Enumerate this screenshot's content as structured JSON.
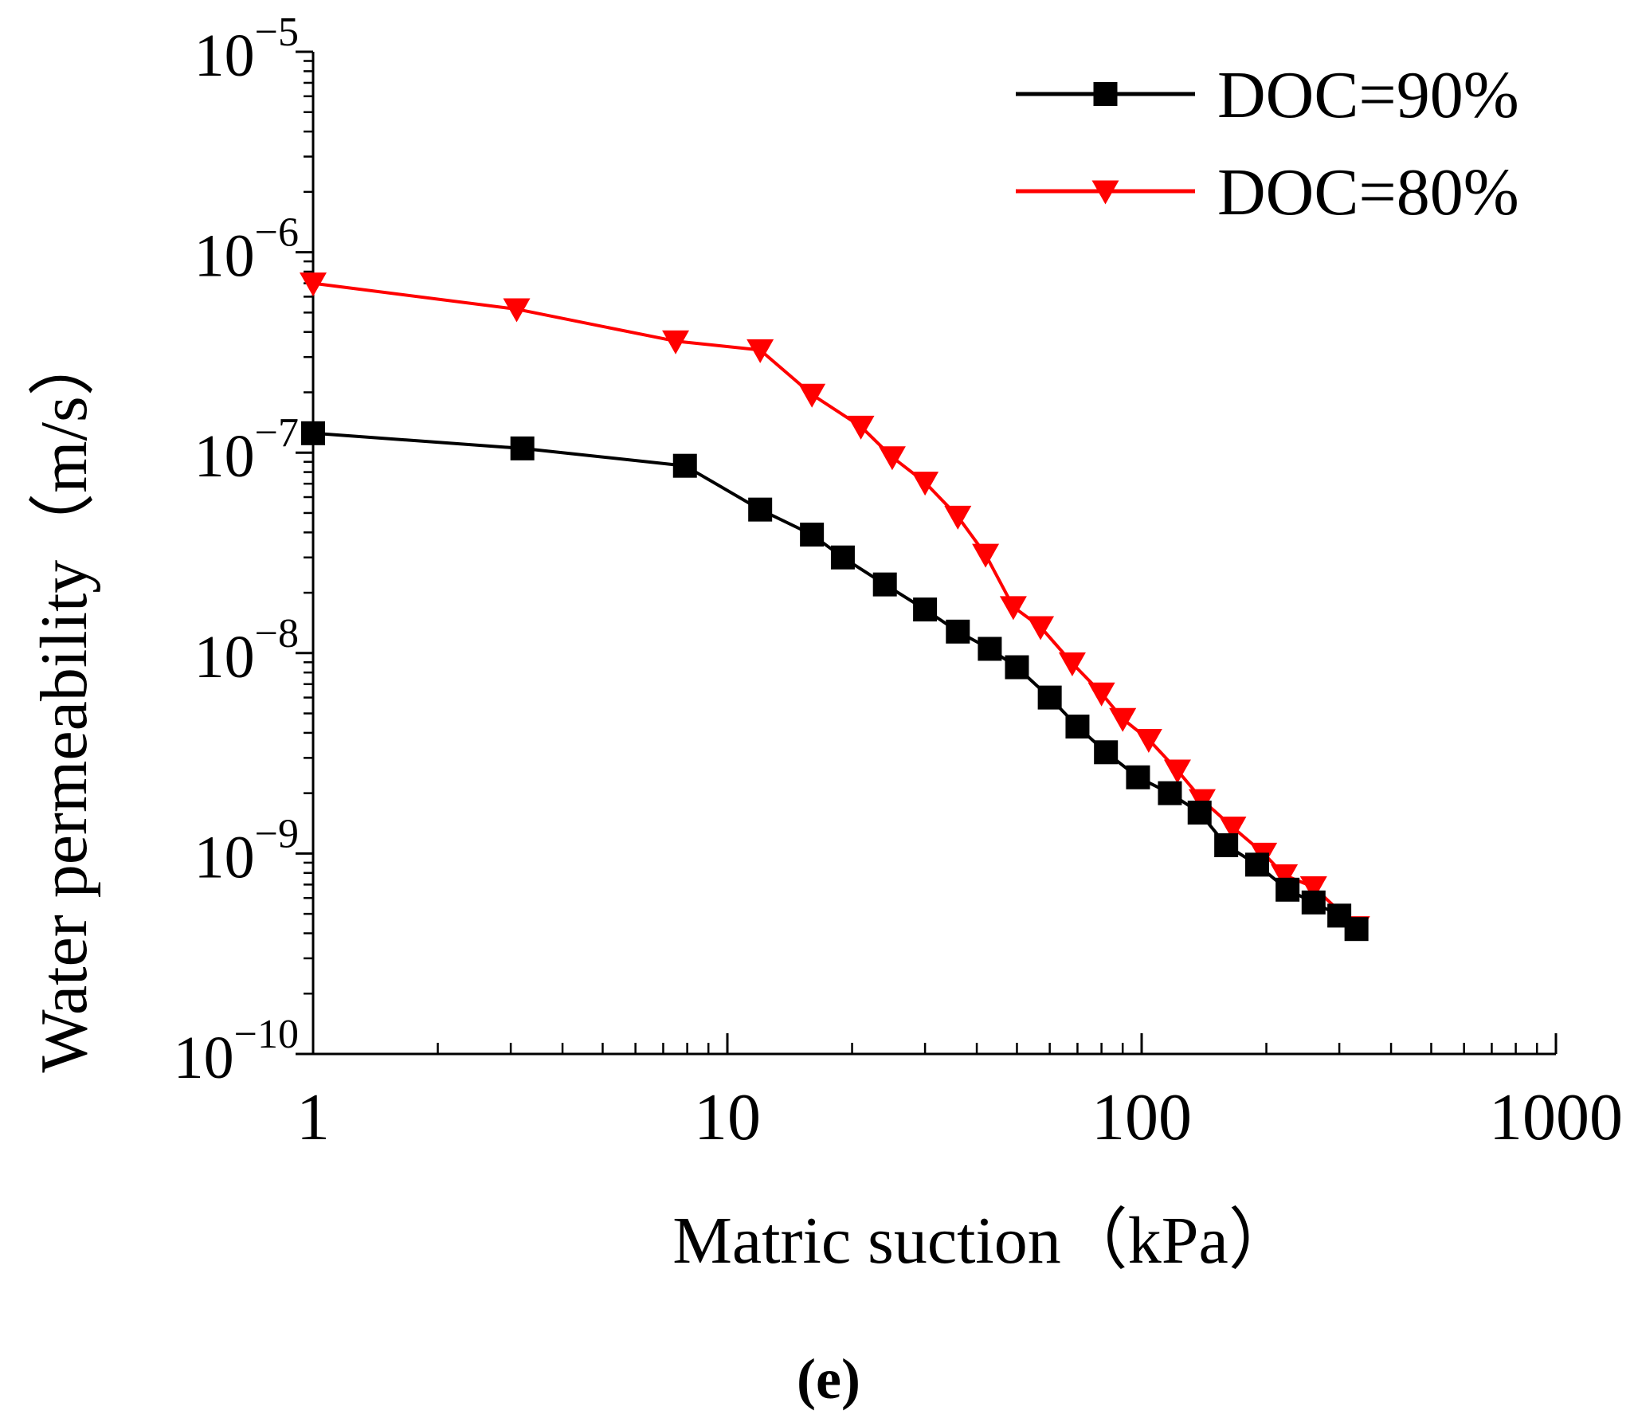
{
  "chart_data": {
    "type": "line",
    "title": "",
    "panel_label": "(e)",
    "xlabel": "Matric suction（kPa）",
    "ylabel": "Water permeability（m/s）",
    "x_scale": "log",
    "y_scale": "log",
    "xlim": [
      1,
      1000
    ],
    "ylim": [
      1e-10,
      1e-05
    ],
    "x_ticks": [
      {
        "value": 1,
        "label": "1"
      },
      {
        "value": 10,
        "label": "10"
      },
      {
        "value": 100,
        "label": "100"
      },
      {
        "value": 1000,
        "label": "1000"
      }
    ],
    "y_ticks": [
      {
        "value": 1e-05,
        "base": "10",
        "exp": "−5"
      },
      {
        "value": 1e-06,
        "base": "10",
        "exp": "−6"
      },
      {
        "value": 1e-07,
        "base": "10",
        "exp": "−7"
      },
      {
        "value": 1e-08,
        "base": "10",
        "exp": "−8"
      },
      {
        "value": 1e-09,
        "base": "10",
        "exp": "−9"
      },
      {
        "value": 1e-10,
        "base": "10",
        "exp": "−10"
      }
    ],
    "grid": false,
    "legend_position": "top-right",
    "series": [
      {
        "name": "DOC=90%",
        "color": "#000000",
        "marker": "square",
        "x": [
          1,
          3.2,
          7.9,
          12,
          16,
          19,
          24,
          30,
          36,
          43,
          50,
          60,
          70,
          82,
          98,
          117,
          138,
          160,
          190,
          225,
          260,
          300,
          330
        ],
        "y": [
          1.25e-07,
          1.05e-07,
          8.6e-08,
          5.2e-08,
          3.9e-08,
          3e-08,
          2.2e-08,
          1.65e-08,
          1.28e-08,
          1.05e-08,
          8.5e-09,
          6e-09,
          4.3e-09,
          3.2e-09,
          2.4e-09,
          2e-09,
          1.6e-09,
          1.1e-09,
          8.8e-10,
          6.6e-10,
          5.7e-10,
          4.9e-10,
          4.2e-10
        ]
      },
      {
        "name": "DOC=80%",
        "color": "#ff0000",
        "marker": "triangle-down",
        "x": [
          1,
          3.1,
          7.5,
          12,
          16,
          21,
          25,
          30,
          36,
          42,
          49,
          57,
          68,
          80,
          90,
          104,
          122,
          140,
          166,
          197,
          221,
          260,
          330
        ],
        "y": [
          7e-07,
          5.2e-07,
          3.6e-07,
          3.25e-07,
          1.95e-07,
          1.35e-07,
          9.5e-08,
          7.1e-08,
          4.8e-08,
          3.1e-08,
          1.7e-08,
          1.35e-08,
          8.9e-09,
          6.3e-09,
          4.7e-09,
          3.7e-09,
          2.6e-09,
          1.85e-09,
          1.35e-09,
          1e-09,
          7.8e-10,
          6.8e-10,
          4.3e-10
        ]
      }
    ]
  }
}
